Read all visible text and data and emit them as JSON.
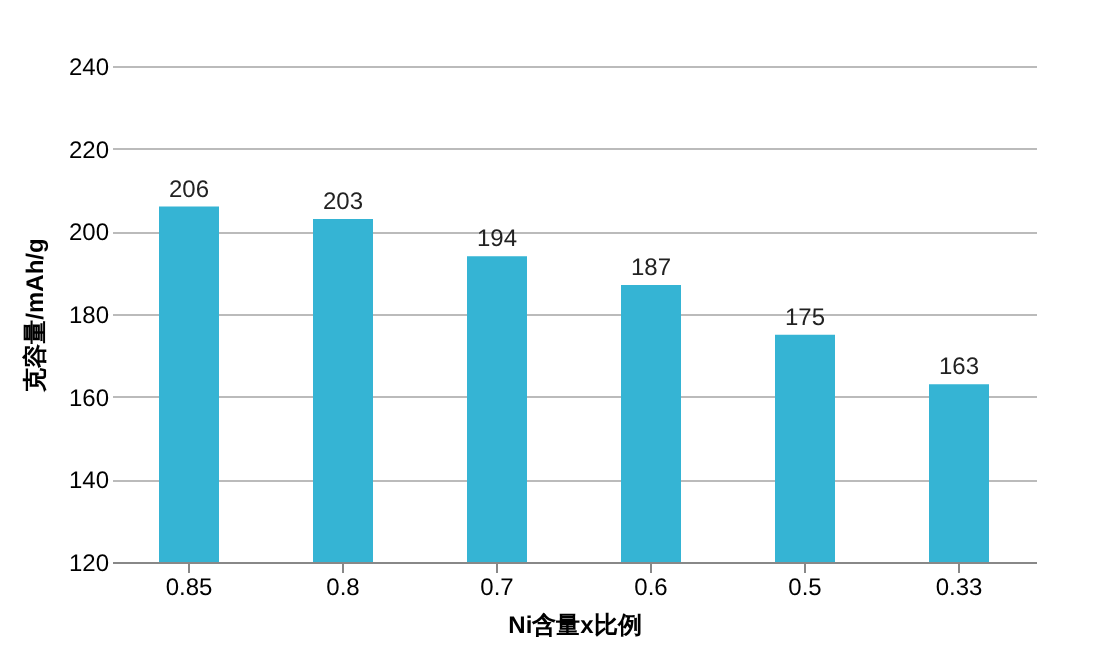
{
  "chart_data": {
    "type": "bar",
    "xlabel": "Ni含量x比例",
    "ylabel": "克容量/mAh/g",
    "categories": [
      "0.85",
      "0.8",
      "0.7",
      "0.6",
      "0.5",
      "0.33"
    ],
    "values": [
      206,
      203,
      194,
      187,
      175,
      163
    ],
    "color": "#35b4d4",
    "ylim": [
      120,
      240
    ],
    "yticks": [
      120,
      140,
      160,
      180,
      200,
      220,
      240
    ],
    "grid": "y",
    "data_labels": true
  }
}
